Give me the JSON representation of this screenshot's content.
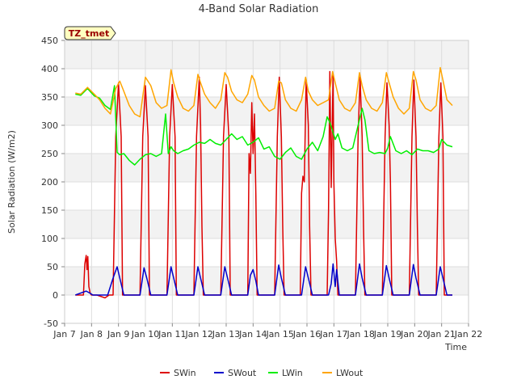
{
  "chart_data": {
    "type": "line",
    "title": "4-Band Solar Radiation",
    "xlabel": "Time",
    "ylabel": "Solar Radiation (W/m2)",
    "station_label": "TZ_tmet",
    "xlim": [
      7,
      22
    ],
    "ylim": [
      -50,
      450
    ],
    "x_ticks": [
      7,
      8,
      9,
      10,
      11,
      12,
      13,
      14,
      15,
      16,
      17,
      18,
      19,
      20,
      21,
      22
    ],
    "x_tick_labels": [
      "Jan 7",
      "Jan 8",
      "Jan 9",
      "Jan 10",
      "Jan 11",
      "Jan 12",
      "Jan 13",
      "Jan 14",
      "Jan 15",
      "Jan 16",
      "Jan 17",
      "Jan 18",
      "Jan 19",
      "Jan 20",
      "Jan 21",
      "Jan 22"
    ],
    "y_ticks": [
      -50,
      0,
      50,
      100,
      150,
      200,
      250,
      300,
      350,
      400,
      450
    ],
    "y_tick_labels": [
      "-50",
      "0",
      "50",
      "100",
      "150",
      "200",
      "250",
      "300",
      "350",
      "400",
      "450"
    ],
    "grid": true,
    "legend_position": "bottom",
    "series": [
      {
        "name": "SWin",
        "color": "#dd0000",
        "x": [
          7.4,
          7.7,
          7.75,
          7.8,
          7.83,
          7.86,
          7.9,
          7.95,
          8.0,
          8.2,
          8.5,
          8.65,
          8.8,
          8.9,
          9.0,
          9.1,
          9.15,
          9.3,
          9.6,
          9.8,
          9.9,
          10.0,
          10.1,
          10.15,
          10.3,
          10.6,
          10.8,
          10.9,
          11.0,
          11.1,
          11.15,
          11.3,
          11.6,
          11.8,
          11.9,
          12.0,
          12.05,
          12.1,
          12.15,
          12.3,
          12.6,
          12.8,
          12.9,
          13.0,
          13.1,
          13.15,
          13.3,
          13.6,
          13.8,
          13.85,
          13.9,
          13.95,
          14.0,
          14.05,
          14.1,
          14.15,
          14.3,
          14.6,
          14.8,
          14.9,
          14.97,
          15.05,
          15.1,
          15.15,
          15.3,
          15.6,
          15.75,
          15.8,
          15.85,
          15.9,
          15.97,
          16.05,
          16.1,
          16.15,
          16.3,
          16.6,
          16.75,
          16.8,
          16.85,
          16.9,
          16.97,
          17.0,
          17.05,
          17.1,
          17.15,
          17.3,
          17.6,
          17.8,
          17.9,
          17.97,
          18.05,
          18.1,
          18.15,
          18.3,
          18.6,
          18.8,
          18.9,
          18.97,
          19.0,
          19.05,
          19.1,
          19.15,
          19.3,
          19.6,
          19.8,
          19.9,
          19.97,
          20.05,
          20.1,
          20.15,
          20.3,
          20.6,
          20.8,
          20.9,
          20.97,
          21.05,
          21.1,
          21.15,
          21.3,
          21.4
        ],
        "values": [
          0,
          0,
          55,
          70,
          45,
          68,
          15,
          3,
          0,
          0,
          -5,
          0,
          0,
          280,
          375,
          280,
          0,
          0,
          0,
          0,
          280,
          370,
          280,
          0,
          0,
          0,
          0,
          280,
          372,
          280,
          0,
          0,
          0,
          0,
          280,
          385,
          300,
          120,
          0,
          0,
          0,
          0,
          280,
          372,
          280,
          0,
          0,
          0,
          0,
          250,
          215,
          340,
          250,
          320,
          180,
          0,
          0,
          0,
          0,
          280,
          385,
          280,
          120,
          0,
          0,
          0,
          0,
          180,
          210,
          200,
          380,
          300,
          120,
          0,
          0,
          0,
          0,
          150,
          395,
          190,
          390,
          200,
          100,
          60,
          0,
          0,
          0,
          0,
          280,
          385,
          280,
          120,
          0,
          0,
          0,
          0,
          280,
          375,
          350,
          300,
          200,
          0,
          0,
          0,
          0,
          280,
          380,
          280,
          120,
          0,
          0,
          0,
          0,
          280,
          375,
          280,
          0,
          0,
          0,
          0
        ]
      },
      {
        "name": "SWout",
        "color": "#0000cc",
        "x": [
          7.4,
          7.8,
          7.95,
          8.05,
          8.6,
          8.8,
          8.95,
          9.05,
          9.2,
          9.8,
          9.95,
          10.05,
          10.2,
          10.8,
          10.95,
          11.05,
          11.2,
          11.8,
          11.95,
          12.05,
          12.2,
          12.8,
          12.95,
          13.05,
          13.2,
          13.8,
          13.9,
          14.0,
          14.1,
          14.2,
          14.8,
          14.95,
          15.05,
          15.2,
          15.8,
          15.95,
          16.05,
          16.2,
          16.8,
          16.9,
          16.97,
          17.05,
          17.1,
          17.2,
          17.8,
          17.95,
          18.05,
          18.2,
          18.8,
          18.95,
          19.05,
          19.2,
          19.8,
          19.95,
          20.05,
          20.2,
          20.8,
          20.95,
          21.05,
          21.2,
          21.4
        ],
        "values": [
          0,
          7,
          3,
          0,
          0,
          30,
          50,
          30,
          0,
          0,
          48,
          30,
          0,
          0,
          50,
          30,
          0,
          0,
          50,
          30,
          0,
          0,
          50,
          30,
          0,
          0,
          35,
          45,
          25,
          0,
          0,
          53,
          30,
          0,
          0,
          50,
          30,
          0,
          0,
          20,
          55,
          15,
          45,
          0,
          0,
          55,
          30,
          0,
          0,
          52,
          30,
          0,
          0,
          54,
          30,
          0,
          0,
          50,
          30,
          0,
          0
        ]
      },
      {
        "name": "LWin",
        "color": "#00ee00",
        "x": [
          7.4,
          7.6,
          7.85,
          8.1,
          8.3,
          8.5,
          8.7,
          8.85,
          8.95,
          9.05,
          9.2,
          9.4,
          9.6,
          9.8,
          10.0,
          10.2,
          10.4,
          10.6,
          10.75,
          10.85,
          10.95,
          11.05,
          11.2,
          11.4,
          11.6,
          11.8,
          12.0,
          12.2,
          12.4,
          12.6,
          12.8,
          13.0,
          13.2,
          13.4,
          13.6,
          13.8,
          14.0,
          14.2,
          14.4,
          14.6,
          14.8,
          15.0,
          15.2,
          15.4,
          15.6,
          15.8,
          16.0,
          16.2,
          16.4,
          16.6,
          16.75,
          16.85,
          16.95,
          17.05,
          17.15,
          17.3,
          17.5,
          17.7,
          17.9,
          18.05,
          18.15,
          18.3,
          18.5,
          18.7,
          18.9,
          19.0,
          19.1,
          19.3,
          19.5,
          19.7,
          19.9,
          20.1,
          20.3,
          20.5,
          20.7,
          20.9,
          21.0,
          21.2,
          21.4
        ],
        "values": [
          355,
          353,
          365,
          352,
          348,
          335,
          328,
          370,
          252,
          248,
          250,
          238,
          230,
          240,
          248,
          250,
          245,
          250,
          320,
          250,
          262,
          255,
          250,
          255,
          258,
          265,
          270,
          268,
          275,
          268,
          265,
          275,
          285,
          275,
          280,
          265,
          270,
          278,
          258,
          262,
          245,
          240,
          252,
          260,
          245,
          240,
          258,
          270,
          255,
          280,
          315,
          305,
          290,
          275,
          285,
          260,
          255,
          260,
          300,
          330,
          310,
          255,
          250,
          252,
          250,
          260,
          280,
          255,
          250,
          255,
          248,
          258,
          255,
          255,
          252,
          258,
          275,
          265,
          262
        ]
      },
      {
        "name": "LWout",
        "color": "#ffa500",
        "x": [
          7.4,
          7.6,
          7.85,
          8.1,
          8.3,
          8.5,
          8.7,
          8.9,
          9.05,
          9.2,
          9.4,
          9.6,
          9.8,
          10.0,
          10.2,
          10.4,
          10.6,
          10.8,
          10.95,
          11.05,
          11.2,
          11.4,
          11.6,
          11.8,
          11.95,
          12.05,
          12.2,
          12.4,
          12.6,
          12.8,
          12.95,
          13.05,
          13.2,
          13.4,
          13.6,
          13.8,
          13.95,
          14.05,
          14.2,
          14.4,
          14.6,
          14.8,
          14.95,
          15.05,
          15.2,
          15.4,
          15.6,
          15.8,
          15.95,
          16.05,
          16.2,
          16.4,
          16.6,
          16.8,
          16.95,
          17.05,
          17.2,
          17.4,
          17.6,
          17.8,
          17.95,
          18.05,
          18.2,
          18.4,
          18.6,
          18.8,
          18.95,
          19.05,
          19.2,
          19.4,
          19.6,
          19.8,
          19.95,
          20.05,
          20.2,
          20.4,
          20.6,
          20.8,
          20.95,
          21.05,
          21.2,
          21.4
        ],
        "values": [
          357,
          355,
          367,
          355,
          345,
          330,
          320,
          365,
          378,
          360,
          335,
          320,
          315,
          385,
          370,
          340,
          330,
          335,
          398,
          375,
          350,
          330,
          325,
          335,
          390,
          375,
          355,
          340,
          330,
          345,
          393,
          385,
          360,
          345,
          340,
          355,
          388,
          380,
          350,
          335,
          325,
          330,
          378,
          375,
          345,
          330,
          325,
          345,
          385,
          360,
          345,
          335,
          340,
          345,
          395,
          375,
          345,
          330,
          325,
          340,
          393,
          370,
          345,
          330,
          325,
          340,
          393,
          375,
          350,
          330,
          320,
          330,
          395,
          380,
          345,
          330,
          325,
          335,
          402,
          380,
          345,
          335
        ]
      }
    ]
  }
}
